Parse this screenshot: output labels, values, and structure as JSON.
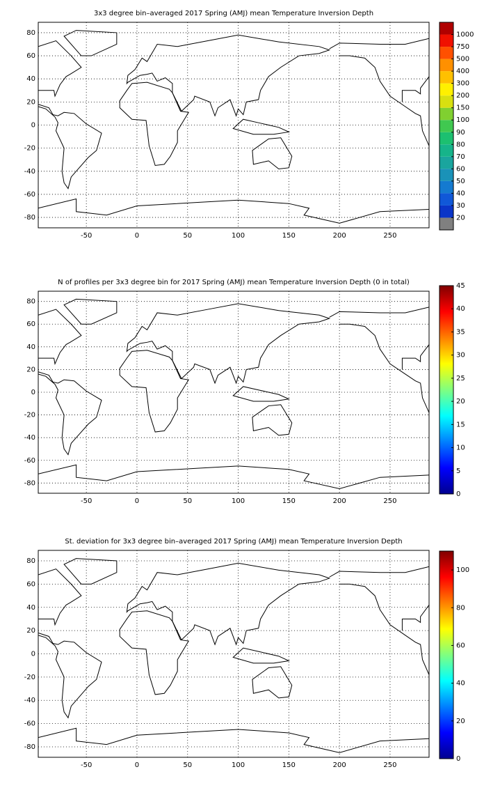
{
  "chart_data": [
    {
      "type": "map",
      "title": "3x3 degree bin–averaged 2017 Spring (AMJ) mean Temperature Inversion Depth",
      "xlim": [
        -97.5,
        288.5
      ],
      "ylim": [
        -89,
        89
      ],
      "xticks": [
        -50,
        0,
        50,
        100,
        150,
        200,
        250
      ],
      "yticks": [
        -80,
        -60,
        -40,
        -20,
        0,
        20,
        40,
        60,
        80
      ],
      "grid": true,
      "colorbar": {
        "kind": "discrete",
        "ticks": [
          20,
          30,
          40,
          50,
          60,
          70,
          80,
          90,
          100,
          150,
          200,
          300,
          400,
          500,
          750,
          1000
        ],
        "colors": [
          "#808080",
          "#0a35c8",
          "#1058d8",
          "#147ad0",
          "#1a92b8",
          "#1aa59e",
          "#16b48a",
          "#1cc070",
          "#40c850",
          "#80d030",
          "#d8e010",
          "#fff000",
          "#ffc000",
          "#ff9000",
          "#ff5000",
          "#f01000",
          "#b00000"
        ]
      }
    },
    {
      "type": "map",
      "title": "N of profiles per 3x3 degree bin for 2017 Spring (AMJ) mean Temperature Inversion Depth  (0 in total)",
      "xlim": [
        -97.5,
        288.5
      ],
      "ylim": [
        -89,
        89
      ],
      "xticks": [
        -50,
        0,
        50,
        100,
        150,
        200,
        250
      ],
      "yticks": [
        -80,
        -60,
        -40,
        -20,
        0,
        20,
        40,
        60,
        80
      ],
      "grid": true,
      "colorbar": {
        "kind": "continuous",
        "clim": [
          0,
          45
        ],
        "ticks": [
          0,
          5,
          10,
          15,
          20,
          25,
          30,
          35,
          40,
          45
        ]
      }
    },
    {
      "type": "map",
      "title": "St. deviation for 3x3 degree bin–averaged 2017 Spring (AMJ) mean Temperature Inversion Depth",
      "xlim": [
        -97.5,
        288.5
      ],
      "ylim": [
        -89,
        89
      ],
      "xticks": [
        -50,
        0,
        50,
        100,
        150,
        200,
        250
      ],
      "yticks": [
        -80,
        -60,
        -40,
        -20,
        0,
        20,
        40,
        60,
        80
      ],
      "grid": true,
      "colorbar": {
        "kind": "continuous",
        "clim": [
          0,
          110
        ],
        "ticks": [
          0,
          20,
          40,
          60,
          80,
          100
        ]
      }
    }
  ]
}
